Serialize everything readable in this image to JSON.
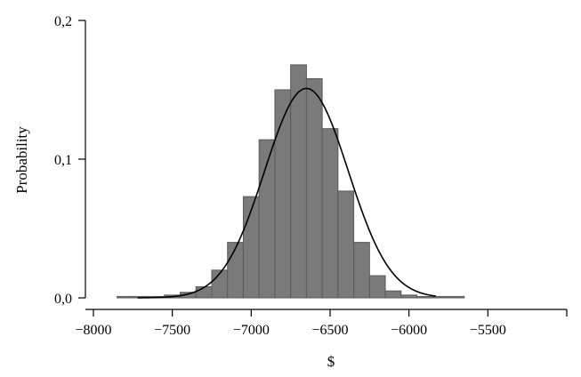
{
  "chart_data": {
    "type": "bar",
    "title": "",
    "xlabel": "$",
    "ylabel": "Probability",
    "xlim": [
      -8000,
      -5000
    ],
    "ylim": [
      0,
      0.2
    ],
    "x_ticks": [
      -8000,
      -7500,
      -7000,
      -6500,
      -6000,
      -5500
    ],
    "x_tick_labels": [
      "−8000",
      "−7500",
      "−7000",
      "−6500",
      "−6000",
      "−5500"
    ],
    "y_ticks": [
      0,
      0.1,
      0.2
    ],
    "y_tick_labels": [
      "0,0",
      "0,1",
      "0,2"
    ],
    "grid": false,
    "bin_width": 100,
    "bins": [
      {
        "x0": -7850,
        "value": 0.001
      },
      {
        "x0": -7750,
        "value": 0.001
      },
      {
        "x0": -7650,
        "value": 0.001
      },
      {
        "x0": -7550,
        "value": 0.002
      },
      {
        "x0": -7450,
        "value": 0.004
      },
      {
        "x0": -7350,
        "value": 0.008
      },
      {
        "x0": -7250,
        "value": 0.02
      },
      {
        "x0": -7150,
        "value": 0.04
      },
      {
        "x0": -7050,
        "value": 0.073
      },
      {
        "x0": -6950,
        "value": 0.114
      },
      {
        "x0": -6850,
        "value": 0.15
      },
      {
        "x0": -6750,
        "value": 0.168
      },
      {
        "x0": -6650,
        "value": 0.158
      },
      {
        "x0": -6550,
        "value": 0.122
      },
      {
        "x0": -6450,
        "value": 0.077
      },
      {
        "x0": -6350,
        "value": 0.04
      },
      {
        "x0": -6250,
        "value": 0.016
      },
      {
        "x0": -6150,
        "value": 0.005
      },
      {
        "x0": -6050,
        "value": 0.002
      },
      {
        "x0": -5950,
        "value": 0.001
      },
      {
        "x0": -5850,
        "value": 0.001
      },
      {
        "x0": -5750,
        "value": 0.001
      }
    ],
    "fit_curve": {
      "type": "normal",
      "mean": -6650,
      "sd": 265,
      "peak": 0.151,
      "x_range": [
        -7720,
        -5830
      ]
    },
    "colors": {
      "bar_fill": "#7a7a7a",
      "bar_stroke": "#5a5a5a",
      "curve": "#000000",
      "axis": "#000000"
    }
  }
}
